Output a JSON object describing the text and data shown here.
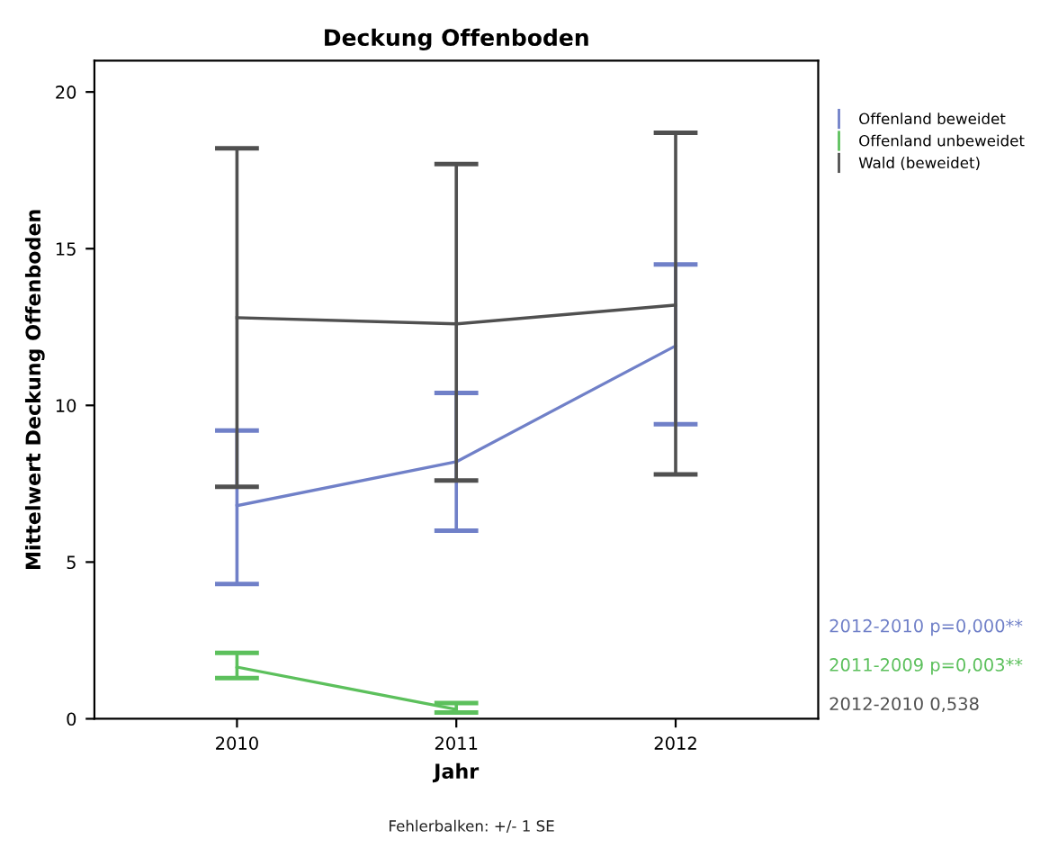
{
  "chart_data": {
    "type": "line",
    "title": "Deckung Offenboden",
    "xlabel": "Jahr",
    "ylabel": "Mittelwert Deckung Offenboden",
    "categories": [
      "2010",
      "2011",
      "2012"
    ],
    "series": [
      {
        "name": "Offenland beweidet",
        "color": "#7080c8",
        "values": [
          6.8,
          8.2,
          11.9
        ],
        "errors": [
          [
            4.3,
            9.2
          ],
          [
            6.0,
            10.4
          ],
          [
            9.4,
            14.5
          ]
        ]
      },
      {
        "name": "Offenland unbeweidet",
        "color": "#5cc05c",
        "values": [
          1.65,
          0.3,
          null
        ],
        "errors": [
          [
            1.3,
            2.1
          ],
          [
            0.2,
            0.5
          ],
          null
        ]
      },
      {
        "name": "Wald (beweidet)",
        "color": "#505050",
        "values": [
          12.8,
          12.6,
          13.2
        ],
        "errors": [
          [
            7.4,
            18.2
          ],
          [
            7.6,
            17.7
          ],
          [
            7.8,
            18.7
          ]
        ]
      }
    ],
    "ylim": [
      0,
      21
    ],
    "yticks": [
      0,
      5,
      10,
      15,
      20
    ],
    "grid": false,
    "legend": "right",
    "marker": "none",
    "line_style": "solid",
    "annotations": [
      "2012-2010 p=0,000**",
      "2011-2009 p=0,003**",
      "2012-2010 0,538",
      "Fehlerbalken: +/- 1 SE"
    ]
  }
}
